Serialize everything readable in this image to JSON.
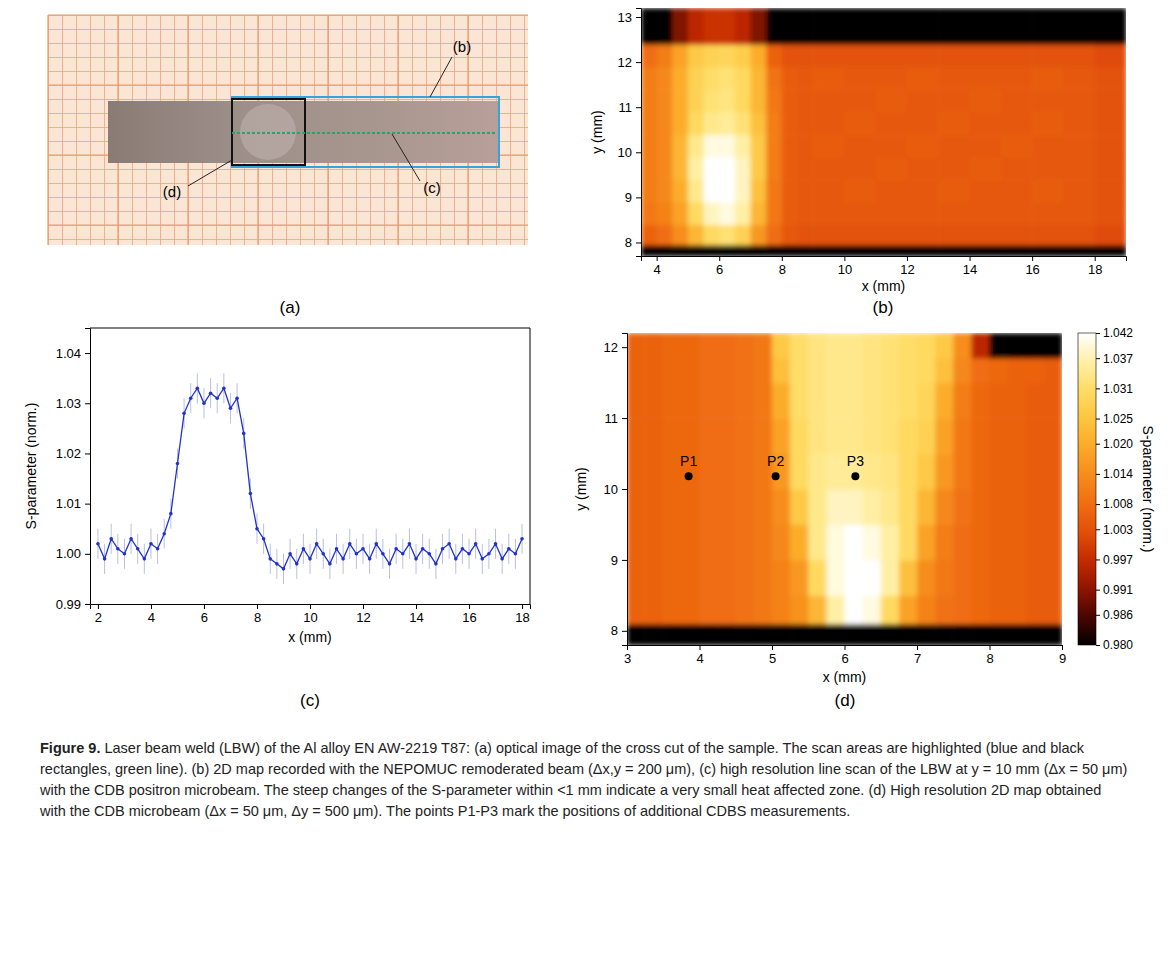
{
  "figure": {
    "panel_letters": [
      "(a)",
      "(b)",
      "(c)",
      "(d)"
    ],
    "photo_callouts": [
      "(b)",
      "(c)",
      "(d)"
    ],
    "caption_label": "Figure 9.",
    "caption": "Laser beam weld (LBW) of the Al alloy EN AW-2219 T87: (a) optical image of the cross cut of the sample. The scan areas are highlighted (blue and black rectangles, green line). (b) 2D map recorded with the NEPOMUC remoderated beam (Δx,y = 200 μm), (c) high resolution line scan of the LBW at y = 10 mm (Δx = 50 μm) with the CDB positron microbeam. The steep changes of the S-parameter within <1 mm indicate a very small heat affected zone. (d) High resolution 2D map obtained with the CDB microbeam (Δx = 50 μm, Δy = 500 μm). The points P1-P3 mark the positions of additional CDBS measurements."
  },
  "chart_data": [
    {
      "type": "heatmap",
      "x_label": "x (mm)",
      "y_label": "y (mm)",
      "xlim": [
        3.5,
        19.0
      ],
      "ylim": [
        7.7,
        13.2
      ],
      "xticks": [
        4,
        6,
        8,
        10,
        12,
        14,
        16,
        18
      ],
      "yticks": [
        8,
        9,
        10,
        11,
        12,
        13
      ],
      "zlim": [
        0.98,
        1.042
      ],
      "x_edges": [
        3.5,
        4,
        4.5,
        5,
        5.5,
        6,
        6.5,
        7,
        7.5,
        8,
        8.5,
        9,
        10,
        11,
        12,
        13,
        14,
        15,
        16,
        17,
        18,
        19
      ],
      "y_edges": [
        7.7,
        7.95,
        8.4,
        8.9,
        9.4,
        9.9,
        10.4,
        10.9,
        11.4,
        11.9,
        12.4,
        13.2
      ],
      "z": [
        [
          0.98,
          0.98,
          0.98,
          0.98,
          0.98,
          0.98,
          0.98,
          0.98,
          0.98,
          0.98,
          0.98,
          0.98,
          0.98,
          0.98,
          0.98,
          0.98,
          0.98,
          0.98,
          0.98,
          0.98,
          0.98
        ],
        [
          1.006,
          1.008,
          1.014,
          1.022,
          1.03,
          1.032,
          1.028,
          1.016,
          1.008,
          1.004,
          1.003,
          1.003,
          1.003,
          1.003,
          1.003,
          1.003,
          1.003,
          1.003,
          1.003,
          1.003,
          1.002
        ],
        [
          1.01,
          1.012,
          1.018,
          1.03,
          1.038,
          1.04,
          1.036,
          1.022,
          1.01,
          1.005,
          1.004,
          1.004,
          1.004,
          1.004,
          1.004,
          1.004,
          1.004,
          1.004,
          1.004,
          1.004,
          1.003
        ],
        [
          1.011,
          1.013,
          1.02,
          1.034,
          1.042,
          1.042,
          1.038,
          1.024,
          1.01,
          1.005,
          1.004,
          1.004,
          1.005,
          1.004,
          1.004,
          1.005,
          1.004,
          1.004,
          1.005,
          1.004,
          1.003
        ],
        [
          1.011,
          1.013,
          1.022,
          1.036,
          1.042,
          1.042,
          1.038,
          1.026,
          1.011,
          1.005,
          1.004,
          1.004,
          1.004,
          1.005,
          1.004,
          1.004,
          1.005,
          1.004,
          1.004,
          1.004,
          1.003
        ],
        [
          1.011,
          1.013,
          1.022,
          1.034,
          1.04,
          1.04,
          1.036,
          1.026,
          1.011,
          1.005,
          1.004,
          1.005,
          1.004,
          1.004,
          1.005,
          1.004,
          1.004,
          1.005,
          1.004,
          1.004,
          1.003
        ],
        [
          1.011,
          1.013,
          1.02,
          1.03,
          1.034,
          1.035,
          1.032,
          1.024,
          1.011,
          1.005,
          1.004,
          1.004,
          1.005,
          1.004,
          1.004,
          1.005,
          1.004,
          1.004,
          1.005,
          1.004,
          1.003
        ],
        [
          1.011,
          1.013,
          1.02,
          1.028,
          1.032,
          1.033,
          1.03,
          1.022,
          1.01,
          1.005,
          1.004,
          1.004,
          1.004,
          1.005,
          1.004,
          1.004,
          1.005,
          1.004,
          1.004,
          1.004,
          1.003
        ],
        [
          1.011,
          1.013,
          1.02,
          1.028,
          1.031,
          1.032,
          1.03,
          1.022,
          1.009,
          1.005,
          1.004,
          1.005,
          1.004,
          1.004,
          1.005,
          1.004,
          1.004,
          1.004,
          1.005,
          1.004,
          1.003
        ],
        [
          1.008,
          1.011,
          1.018,
          1.026,
          1.028,
          1.029,
          1.027,
          1.02,
          1.006,
          1.003,
          1.003,
          1.003,
          1.003,
          1.003,
          1.003,
          1.003,
          1.003,
          1.003,
          1.003,
          1.003,
          1.002
        ],
        [
          0.98,
          0.98,
          0.99,
          0.996,
          0.998,
          0.998,
          0.996,
          0.99,
          0.98,
          0.98,
          0.98,
          0.98,
          0.98,
          0.98,
          0.98,
          0.98,
          0.98,
          0.98,
          0.98,
          0.98,
          0.98
        ]
      ]
    },
    {
      "type": "line",
      "x_label": "x (mm)",
      "y_label": "S-parameter (norm.)",
      "xlim": [
        1.7,
        18.3
      ],
      "ylim": [
        0.99,
        1.045
      ],
      "xticks": [
        2,
        4,
        6,
        8,
        10,
        12,
        14,
        16,
        18
      ],
      "yticks": [
        0.99,
        {
          "value": 1,
          "label": "1.00"
        },
        1.01,
        1.02,
        1.03,
        1.04
      ],
      "x": [
        2,
        2.25,
        2.5,
        2.75,
        3,
        3.25,
        3.5,
        3.75,
        4,
        4.25,
        4.5,
        4.75,
        5,
        5.25,
        5.5,
        5.75,
        6,
        6.25,
        6.5,
        6.75,
        7,
        7.25,
        7.5,
        7.75,
        8,
        8.25,
        8.5,
        8.75,
        9,
        9.25,
        9.5,
        9.75,
        10,
        10.25,
        10.5,
        10.75,
        11,
        11.25,
        11.5,
        11.75,
        12,
        12.25,
        12.5,
        12.75,
        13,
        13.25,
        13.5,
        13.75,
        14,
        14.25,
        14.5,
        14.75,
        15,
        15.25,
        15.5,
        15.75,
        16,
        16.25,
        16.5,
        16.75,
        17,
        17.25,
        17.5,
        17.75,
        18
      ],
      "series": [
        {
          "color": "#2233cc",
          "marker": "circle",
          "line_style": "solid",
          "values": [
            1.002,
            0.999,
            1.003,
            1.001,
            1,
            1.003,
            1.001,
            0.999,
            1.002,
            1.001,
            1.004,
            1.008,
            1.018,
            1.028,
            1.031,
            1.033,
            1.03,
            1.032,
            1.031,
            1.033,
            1.029,
            1.031,
            1.024,
            1.012,
            1.005,
            1.003,
            0.999,
            0.998,
            0.997,
            1,
            0.998,
            1.001,
            0.999,
            1.002,
            1,
            0.998,
            1.001,
            0.999,
            1.002,
            1,
            1.001,
            0.999,
            1.002,
            1,
            0.998,
            1.001,
            1,
            1.002,
            0.999,
            1.001,
            1,
            0.998,
            1.001,
            1.002,
            0.999,
            1.001,
            1,
            1.002,
            0.999,
            1,
            1.002,
            0.999,
            1.001,
            1,
            1.003
          ],
          "errors": [
            0.003,
            0.003,
            0.003,
            0.003,
            0.003,
            0.003,
            0.003,
            0.003,
            0.003,
            0.003,
            0.003,
            0.003,
            0.003,
            0.003,
            0.003,
            0.003,
            0.003,
            0.003,
            0.003,
            0.003,
            0.003,
            0.003,
            0.003,
            0.003,
            0.003,
            0.003,
            0.003,
            0.003,
            0.003,
            0.003,
            0.003,
            0.003,
            0.003,
            0.003,
            0.003,
            0.003,
            0.003,
            0.003,
            0.003,
            0.003,
            0.003,
            0.003,
            0.003,
            0.003,
            0.003,
            0.003,
            0.003,
            0.003,
            0.003,
            0.003,
            0.003,
            0.003,
            0.003,
            0.003,
            0.003,
            0.003,
            0.003,
            0.003,
            0.003,
            0.003,
            0.003,
            0.003,
            0.003,
            0.003,
            0.003
          ]
        }
      ]
    },
    {
      "type": "heatmap",
      "x_label": "x (mm)",
      "y_label": "y (mm)",
      "xlim": [
        3,
        9
      ],
      "ylim": [
        7.8,
        12.2
      ],
      "xticks": [
        3,
        4,
        5,
        6,
        7,
        8,
        9
      ],
      "yticks": [
        8,
        9,
        10,
        11,
        12
      ],
      "x_edges": [
        3,
        3.25,
        3.5,
        3.75,
        4,
        4.25,
        4.5,
        4.75,
        5,
        5.25,
        5.5,
        5.75,
        6,
        6.25,
        6.5,
        6.75,
        7,
        7.25,
        7.5,
        7.75,
        8,
        8.25,
        8.5,
        8.75,
        9
      ],
      "y_edges": [
        7.8,
        8.1,
        8.5,
        9,
        9.5,
        10,
        10.5,
        11,
        11.5,
        11.85,
        12.2
      ],
      "z": [
        [
          0.98,
          0.98,
          0.98,
          0.98,
          0.98,
          0.98,
          0.98,
          0.98,
          0.98,
          0.98,
          0.98,
          0.98,
          0.98,
          0.98,
          0.98,
          0.98,
          0.98,
          0.98,
          0.98,
          0.98,
          0.98,
          0.98,
          0.98,
          0.98
        ],
        [
          1.006,
          1.006,
          1.007,
          1.007,
          1.008,
          1.008,
          1.009,
          1.01,
          1.012,
          1.015,
          1.022,
          1.036,
          1.042,
          1.04,
          1.03,
          1.018,
          1.012,
          1.009,
          1.008,
          1.007,
          1.006,
          1.006,
          1.005,
          1.005
        ],
        [
          1.006,
          1.006,
          1.007,
          1.007,
          1.008,
          1.008,
          1.009,
          1.01,
          1.012,
          1.016,
          1.03,
          1.04,
          1.042,
          1.042,
          1.036,
          1.024,
          1.014,
          1.01,
          1.008,
          1.007,
          1.006,
          1.006,
          1.005,
          1.005
        ],
        [
          1.006,
          1.006,
          1.007,
          1.007,
          1.008,
          1.008,
          1.009,
          1.01,
          1.013,
          1.02,
          1.034,
          1.04,
          1.042,
          1.04,
          1.036,
          1.03,
          1.018,
          1.011,
          1.008,
          1.007,
          1.006,
          1.006,
          1.005,
          1.005
        ],
        [
          1.006,
          1.006,
          1.007,
          1.007,
          1.008,
          1.008,
          1.009,
          1.01,
          1.014,
          1.026,
          1.034,
          1.038,
          1.038,
          1.036,
          1.034,
          1.03,
          1.022,
          1.013,
          1.009,
          1.007,
          1.006,
          1.006,
          1.005,
          1.005
        ],
        [
          1.006,
          1.006,
          1.007,
          1.007,
          1.008,
          1.008,
          1.009,
          1.01,
          1.016,
          1.03,
          1.034,
          1.035,
          1.035,
          1.034,
          1.033,
          1.03,
          1.026,
          1.016,
          1.01,
          1.007,
          1.006,
          1.006,
          1.005,
          1.005
        ],
        [
          1.006,
          1.006,
          1.007,
          1.007,
          1.008,
          1.008,
          1.009,
          1.01,
          1.018,
          1.03,
          1.033,
          1.034,
          1.034,
          1.033,
          1.032,
          1.03,
          1.028,
          1.018,
          1.01,
          1.007,
          1.006,
          1.006,
          1.005,
          1.005
        ],
        [
          1.006,
          1.006,
          1.007,
          1.007,
          1.008,
          1.008,
          1.009,
          1.01,
          1.02,
          1.031,
          1.033,
          1.034,
          1.034,
          1.033,
          1.032,
          1.031,
          1.029,
          1.02,
          1.011,
          1.007,
          1.006,
          1.006,
          1.005,
          1.005
        ],
        [
          1.006,
          1.006,
          1.007,
          1.007,
          1.008,
          1.008,
          1.009,
          1.01,
          1.024,
          1.031,
          1.033,
          1.034,
          1.034,
          1.033,
          1.032,
          1.031,
          1.03,
          1.024,
          1.013,
          1.008,
          1.007,
          1.006,
          1.006,
          1.005
        ],
        [
          1.006,
          1.006,
          1.007,
          1.007,
          1.008,
          1.008,
          1.009,
          1.01,
          1.026,
          1.031,
          1.033,
          1.034,
          1.034,
          1.033,
          1.032,
          1.031,
          1.03,
          1.026,
          1.014,
          0.996,
          0.98,
          0.98,
          0.98,
          0.98
        ]
      ],
      "colorbar": {
        "label": "S-parameter (norm.)",
        "range": [
          0.98,
          1.042
        ],
        "ticks": [
          {
            "value": 0.98,
            "label": "0.980"
          },
          0.986,
          0.991,
          0.997,
          1.003,
          1.008,
          1.014,
          {
            "value": 1.02,
            "label": "1.020"
          },
          1.025,
          1.031,
          1.037,
          1.042
        ]
      },
      "points": [
        {
          "label": "P1",
          "x": 3.85,
          "y": 10.18
        },
        {
          "label": "P2",
          "x": 5.05,
          "y": 10.18
        },
        {
          "label": "P3",
          "x": 6.15,
          "y": 10.18
        }
      ]
    }
  ]
}
